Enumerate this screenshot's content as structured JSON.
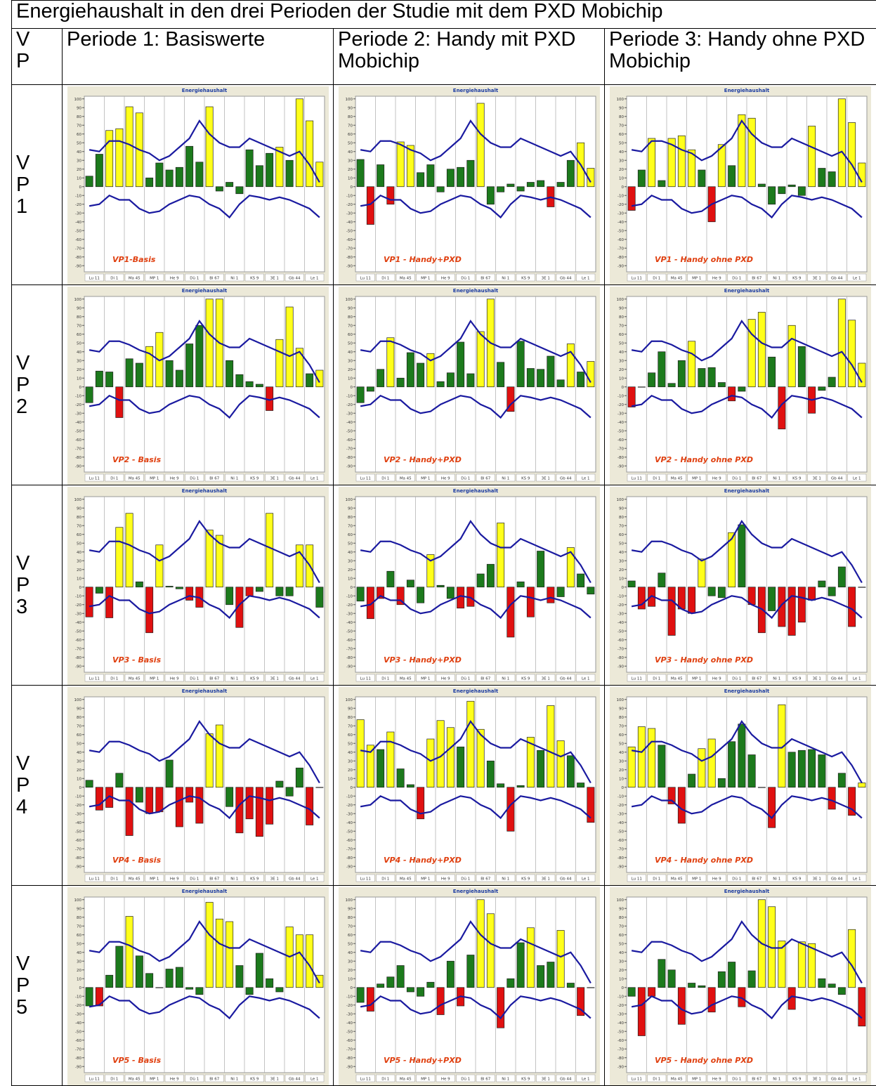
{
  "header": {
    "title": "Energiehaushalt in den drei Perioden der Studie mit dem PXD Mobichip",
    "vp_label": "VP",
    "periods": [
      "Periode 1: Basiswerte",
      "Periode 2: Handy mit PXD Mobichip",
      "Periode 3: Handy ohne PXD Mobichip"
    ]
  },
  "chart_common": {
    "title": "Energiehaushalt",
    "categories": [
      "Lu 11",
      "Di 1",
      "Ma 45",
      "MP 1",
      "He 9",
      "Dü 1",
      "Bl 67",
      "Ni 1",
      "KS 9",
      "3E 1",
      "Gb 44",
      "Le 1"
    ],
    "ylim": [
      -97,
      103
    ],
    "yticks": [
      100,
      90,
      80,
      70,
      60,
      50,
      40,
      30,
      20,
      10,
      0,
      -10,
      -20,
      -30,
      -40,
      -50,
      -60,
      -70,
      -80,
      -90
    ],
    "upper_line": [
      42,
      40,
      52,
      52,
      48,
      42,
      38,
      30,
      35,
      45,
      55,
      75,
      60,
      50,
      45,
      45,
      55,
      50,
      45,
      40,
      35,
      40,
      25,
      5
    ],
    "lower_line": [
      -22,
      -20,
      -10,
      -15,
      -15,
      -25,
      -30,
      -28,
      -20,
      -15,
      -10,
      -12,
      -20,
      -25,
      -35,
      -20,
      -10,
      -12,
      -15,
      -12,
      -15,
      -20,
      -25,
      -35
    ]
  },
  "rows": [
    {
      "label": "VP1",
      "charts": [
        {
          "type": "bar",
          "label": "VP1-Basis",
          "values": [
            12,
            37,
            64,
            66,
            91,
            84,
            10,
            27,
            19,
            22,
            46,
            28,
            91,
            -5,
            5,
            -8,
            42,
            24,
            38,
            45,
            30,
            100,
            75,
            28
          ]
        },
        {
          "type": "bar",
          "label": "VP1 - Handy+PXD",
          "values": [
            31,
            -43,
            25,
            -20,
            51,
            47,
            16,
            25,
            -6,
            20,
            22,
            30,
            95,
            -20,
            -6,
            3,
            -5,
            5,
            7,
            -23,
            5,
            30,
            50,
            21
          ]
        },
        {
          "type": "bar",
          "label": "VP1 - Handy ohne PXD",
          "values": [
            -27,
            19,
            55,
            7,
            55,
            58,
            42,
            19,
            -40,
            48,
            24,
            82,
            78,
            3,
            -20,
            -8,
            2,
            -10,
            69,
            21,
            17,
            100,
            73,
            27
          ]
        }
      ]
    },
    {
      "label": "VP2",
      "charts": [
        {
          "type": "bar",
          "label": "VP2 - Basis",
          "values": [
            -18,
            18,
            17,
            -35,
            32,
            27,
            46,
            62,
            30,
            19,
            49,
            70,
            100,
            100,
            30,
            14,
            6,
            3,
            -27,
            54,
            91,
            44,
            15,
            19
          ]
        },
        {
          "type": "bar",
          "label": "VP2 - Handy+PXD",
          "values": [
            -18,
            -5,
            20,
            56,
            10,
            39,
            27,
            38,
            6,
            16,
            51,
            15,
            63,
            100,
            28,
            -28,
            52,
            21,
            20,
            35,
            8,
            49,
            17,
            29
          ]
        },
        {
          "type": "bar",
          "label": "VP2 - Handy ohne PXD",
          "values": [
            -23,
            0,
            16,
            40,
            4,
            30,
            52,
            21,
            22,
            5,
            -16,
            -5,
            77,
            85,
            34,
            -48,
            70,
            46,
            -30,
            -4,
            11,
            100,
            76,
            27
          ]
        }
      ]
    },
    {
      "label": "VP3",
      "charts": [
        {
          "type": "bar",
          "label": "VP3 - Basis",
          "values": [
            -34,
            -7,
            -35,
            68,
            84,
            6,
            -52,
            48,
            1,
            -2,
            -15,
            -23,
            65,
            59,
            -20,
            -46,
            -10,
            -5,
            84,
            -10,
            -10,
            48,
            48,
            -23
          ]
        },
        {
          "type": "bar",
          "label": "VP3 - Handy+PXD",
          "values": [
            -16,
            -36,
            -13,
            18,
            -20,
            8,
            -18,
            37,
            2,
            -13,
            -24,
            -22,
            15,
            26,
            73,
            -57,
            6,
            -34,
            41,
            -18,
            -11,
            45,
            15,
            -8
          ]
        },
        {
          "type": "bar",
          "label": "VP3 - Handy ohne PXD",
          "values": [
            7,
            -25,
            -22,
            16,
            -55,
            -25,
            -30,
            32,
            -10,
            -12,
            62,
            71,
            -20,
            -52,
            -27,
            -45,
            -55,
            -40,
            -15,
            7,
            -10,
            23,
            -45,
            0
          ]
        }
      ]
    },
    {
      "label": "VP4",
      "charts": [
        {
          "type": "bar",
          "label": "VP4 - Basis",
          "values": [
            8,
            -26,
            -23,
            16,
            -55,
            -17,
            -30,
            -28,
            31,
            -45,
            -17,
            -41,
            61,
            71,
            -22,
            -52,
            -36,
            -56,
            -42,
            7,
            -10,
            22,
            -43,
            0
          ]
        },
        {
          "type": "bar",
          "label": "VP4 - Handy+PXD",
          "values": [
            77,
            48,
            43,
            63,
            21,
            3,
            -36,
            55,
            76,
            68,
            46,
            98,
            66,
            30,
            4,
            -50,
            2,
            57,
            42,
            93,
            53,
            36,
            5,
            -40
          ]
        },
        {
          "type": "bar",
          "label": "VP4 - Handy ohne PXD",
          "values": [
            46,
            69,
            67,
            48,
            -19,
            -41,
            15,
            44,
            55,
            10,
            52,
            72,
            37,
            0,
            -46,
            94,
            40,
            42,
            43,
            37,
            -25,
            16,
            -32,
            5
          ]
        }
      ]
    },
    {
      "label": "VP5",
      "charts": [
        {
          "type": "bar",
          "label": "VP5 - Basis",
          "values": [
            -21,
            -21,
            14,
            47,
            81,
            36,
            16,
            0,
            21,
            23,
            -2,
            -8,
            97,
            78,
            75,
            25,
            -8,
            39,
            10,
            -5,
            69,
            60,
            60,
            14
          ]
        },
        {
          "type": "bar",
          "label": "VP5 - Handy+PXD",
          "values": [
            -17,
            -27,
            4,
            12,
            25,
            -5,
            -10,
            6,
            -31,
            30,
            -21,
            37,
            100,
            84,
            -46,
            10,
            51,
            68,
            25,
            29,
            65,
            5,
            -32,
            0
          ]
        },
        {
          "type": "bar",
          "label": "VP5 - Handy ohne PXD",
          "values": [
            -10,
            -55,
            -10,
            32,
            20,
            -42,
            5,
            2,
            -28,
            18,
            29,
            -22,
            19,
            100,
            92,
            53,
            -25,
            52,
            50,
            10,
            4,
            -8,
            66,
            -44
          ]
        }
      ]
    }
  ]
}
